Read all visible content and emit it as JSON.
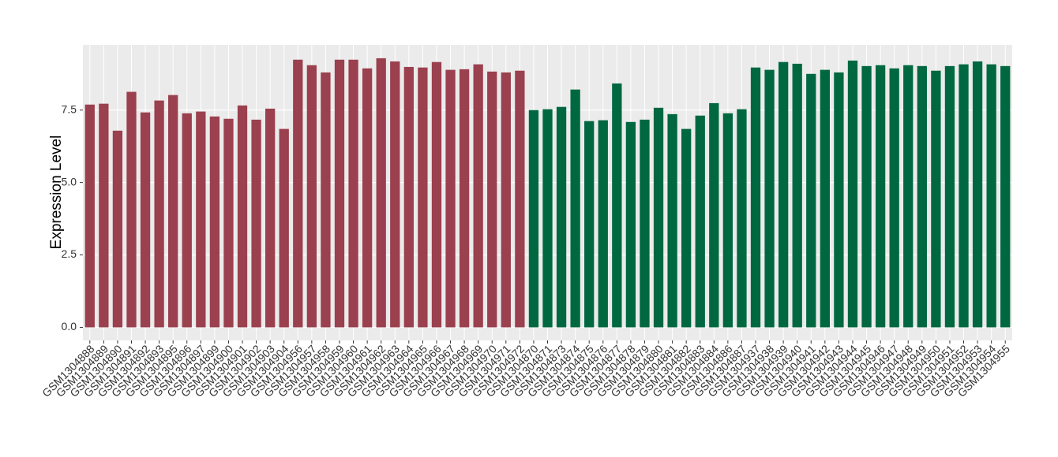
{
  "chart_data": {
    "type": "bar",
    "ylabel": "Expression Level",
    "categories": [
      "GSM1304888",
      "GSM1304889",
      "GSM1304890",
      "GSM1304891",
      "GSM1304892",
      "GSM1304893",
      "GSM1304895",
      "GSM1304896",
      "GSM1304897",
      "GSM1304899",
      "GSM1304900",
      "GSM1304901",
      "GSM1304902",
      "GSM1304903",
      "GSM1304904",
      "GSM1304956",
      "GSM1304957",
      "GSM1304958",
      "GSM1304959",
      "GSM1304960",
      "GSM1304961",
      "GSM1304962",
      "GSM1304963",
      "GSM1304964",
      "GSM1304965",
      "GSM1304966",
      "GSM1304967",
      "GSM1304968",
      "GSM1304969",
      "GSM1304970",
      "GSM1304971",
      "GSM1304972",
      "GSM1304870",
      "GSM1304871",
      "GSM1304873",
      "GSM1304874",
      "GSM1304875",
      "GSM1304876",
      "GSM1304877",
      "GSM1304878",
      "GSM1304879",
      "GSM1304880",
      "GSM1304881",
      "GSM1304882",
      "GSM1304883",
      "GSM1304884",
      "GSM1304886",
      "GSM1304887",
      "GSM1304937",
      "GSM1304938",
      "GSM1304939",
      "GSM1304940",
      "GSM1304941",
      "GSM1304942",
      "GSM1304943",
      "GSM1304944",
      "GSM1304945",
      "GSM1304946",
      "GSM1304947",
      "GSM1304948",
      "GSM1304949",
      "GSM1304950",
      "GSM1304951",
      "GSM1304952",
      "GSM1304953",
      "GSM1304954",
      "GSM1304955"
    ],
    "values": [
      7.69,
      7.72,
      6.79,
      8.13,
      7.42,
      7.83,
      8.02,
      7.39,
      7.45,
      7.28,
      7.2,
      7.66,
      7.17,
      7.55,
      6.85,
      9.24,
      9.05,
      8.8,
      9.24,
      9.24,
      8.94,
      9.29,
      9.18,
      8.99,
      8.97,
      9.16,
      8.89,
      8.91,
      9.08,
      8.83,
      8.8,
      8.86,
      7.5,
      7.53,
      7.61,
      8.21,
      7.12,
      7.15,
      8.42,
      7.09,
      7.17,
      7.58,
      7.36,
      6.85,
      7.31,
      7.74,
      7.39,
      7.53,
      8.97,
      8.89,
      9.16,
      9.1,
      8.75,
      8.89,
      8.8,
      9.21,
      9.02,
      9.05,
      8.94,
      9.05,
      9.02,
      8.86,
      9.02,
      9.08,
      9.18,
      9.08,
      9.02
    ],
    "colors": [
      "#9b404e",
      "#9b404e",
      "#9b404e",
      "#9b404e",
      "#9b404e",
      "#9b404e",
      "#9b404e",
      "#9b404e",
      "#9b404e",
      "#9b404e",
      "#9b404e",
      "#9b404e",
      "#9b404e",
      "#9b404e",
      "#9b404e",
      "#9b404e",
      "#9b404e",
      "#9b404e",
      "#9b404e",
      "#9b404e",
      "#9b404e",
      "#9b404e",
      "#9b404e",
      "#9b404e",
      "#9b404e",
      "#9b404e",
      "#9b404e",
      "#9b404e",
      "#9b404e",
      "#9b404e",
      "#9b404e",
      "#9b404e",
      "#006840",
      "#006840",
      "#006840",
      "#006840",
      "#006840",
      "#006840",
      "#006840",
      "#006840",
      "#006840",
      "#006840",
      "#006840",
      "#006840",
      "#006840",
      "#006840",
      "#006840",
      "#006840",
      "#006840",
      "#006840",
      "#006840",
      "#006840",
      "#006840",
      "#006840",
      "#006840",
      "#006840",
      "#006840",
      "#006840",
      "#006840",
      "#006840",
      "#006840",
      "#006840",
      "#006840",
      "#006840",
      "#006840",
      "#006840",
      "#006840"
    ],
    "ylim": [
      -0.45,
      9.75
    ],
    "yticks": [
      {
        "value": 0,
        "label": "0.0"
      },
      {
        "value": 2.5,
        "label": "2.5"
      },
      {
        "value": 5,
        "label": "5.0"
      },
      {
        "value": 7.5,
        "label": "7.5"
      }
    ],
    "grid": true
  }
}
